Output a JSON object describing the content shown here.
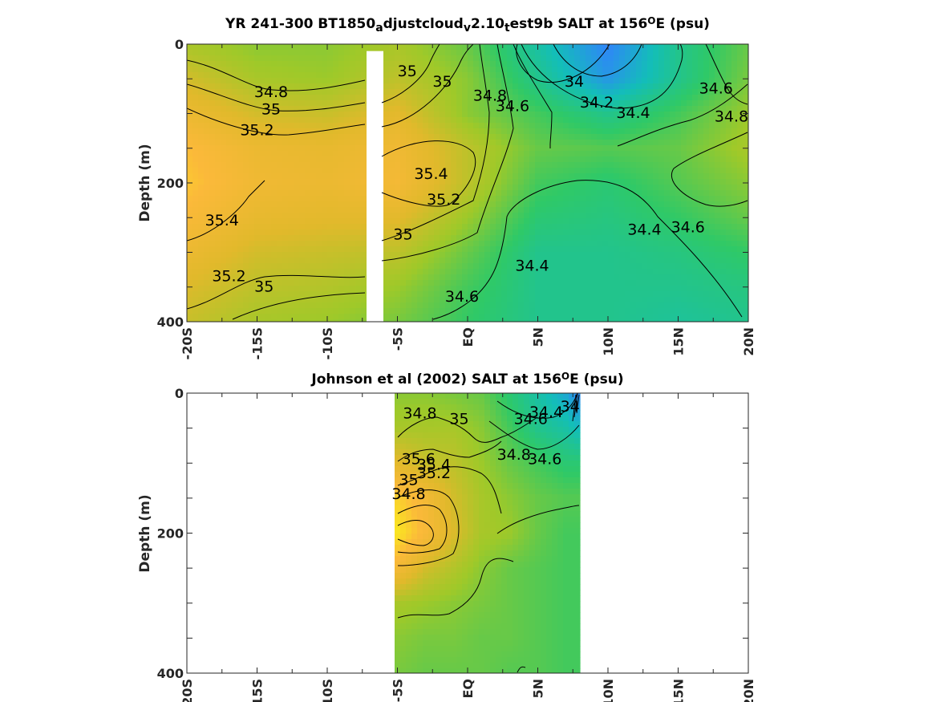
{
  "chart_data": [
    {
      "type": "heatmap",
      "title_parts": [
        "YR 241-300 BT1850",
        "a",
        "djustcloud",
        "v",
        "2.10",
        "t",
        "est9b SALT at 156",
        "O",
        "E (psu)"
      ],
      "ylabel": "Depth (m)",
      "xlim": [
        -20,
        20
      ],
      "ylim": [
        0,
        400
      ],
      "y_reversed": true,
      "x_tick_labels": [
        "-20S",
        "-15S",
        "-10S",
        "-5S",
        "EQ",
        "5N",
        "10N",
        "15N",
        "20N"
      ],
      "y_tick_labels": [
        "0",
        "200",
        "400"
      ],
      "x_tick_values": [
        -20,
        -15,
        -10,
        -5,
        0,
        5,
        10,
        15,
        20
      ],
      "y_tick_values": [
        0,
        200,
        400
      ],
      "missing_band": {
        "x": [
          -7.2,
          -6.0
        ],
        "depth": [
          10,
          400
        ]
      },
      "colormap": [
        "#3e26a8",
        "#2e87f7",
        "#13beb8",
        "#2fc967",
        "#9fc929",
        "#e1b92b",
        "#fbb93a",
        "#f9fb15"
      ],
      "color_range": [
        33.6,
        35.8
      ],
      "field_sample": {
        "lat": [
          -20,
          -15,
          -10,
          -5,
          0,
          5,
          10,
          15,
          20
        ],
        "depth": [
          0,
          50,
          100,
          150,
          200,
          250,
          300,
          350,
          400
        ],
        "salinity": [
          [
            34.9,
            34.8,
            34.8,
            34.9,
            34.7,
            34.3,
            33.9,
            34.4,
            34.7
          ],
          [
            35.1,
            34.9,
            34.85,
            35.0,
            34.8,
            34.4,
            34.0,
            34.4,
            34.75
          ],
          [
            35.3,
            35.1,
            35.05,
            35.2,
            34.8,
            34.6,
            34.4,
            34.6,
            34.85
          ],
          [
            35.5,
            35.3,
            35.25,
            35.35,
            35.0,
            34.7,
            34.65,
            34.7,
            34.9
          ],
          [
            35.55,
            35.35,
            35.3,
            35.4,
            35.0,
            34.6,
            34.5,
            34.65,
            34.8
          ],
          [
            35.45,
            35.25,
            35.2,
            35.2,
            34.85,
            34.5,
            34.45,
            34.55,
            34.7
          ],
          [
            35.3,
            35.1,
            35.05,
            35.0,
            34.7,
            34.4,
            34.4,
            34.45,
            34.55
          ],
          [
            35.15,
            35.0,
            34.95,
            34.85,
            34.6,
            34.4,
            34.4,
            34.4,
            34.45
          ],
          [
            35.05,
            34.9,
            34.85,
            34.75,
            34.55,
            34.4,
            34.4,
            34.35,
            34.4
          ]
        ]
      },
      "contour_labels": [
        {
          "text": "34.8",
          "lat": -14,
          "depth": 70
        },
        {
          "text": "35",
          "lat": -14,
          "depth": 95
        },
        {
          "text": "35.2",
          "lat": -15,
          "depth": 125
        },
        {
          "text": "35.4",
          "lat": -17.5,
          "depth": 255
        },
        {
          "text": "35.2",
          "lat": -17,
          "depth": 335
        },
        {
          "text": "35",
          "lat": -14.5,
          "depth": 350
        },
        {
          "text": "35",
          "lat": -4.3,
          "depth": 40
        },
        {
          "text": "35",
          "lat": -1.8,
          "depth": 55
        },
        {
          "text": "34.8",
          "lat": 1.6,
          "depth": 75
        },
        {
          "text": "34.6",
          "lat": 3.2,
          "depth": 90
        },
        {
          "text": "35.4",
          "lat": -2.6,
          "depth": 188
        },
        {
          "text": "35.2",
          "lat": -1.7,
          "depth": 225
        },
        {
          "text": "35",
          "lat": -4.6,
          "depth": 275
        },
        {
          "text": "34.6",
          "lat": -0.4,
          "depth": 365
        },
        {
          "text": "34.4",
          "lat": 4.6,
          "depth": 320
        },
        {
          "text": "34",
          "lat": 7.6,
          "depth": 55
        },
        {
          "text": "34.2",
          "lat": 9.2,
          "depth": 85
        },
        {
          "text": "34.4",
          "lat": 11.8,
          "depth": 100
        },
        {
          "text": "34.6",
          "lat": 17.7,
          "depth": 65
        },
        {
          "text": "34.8",
          "lat": 18.8,
          "depth": 105
        },
        {
          "text": "34.4",
          "lat": 12.6,
          "depth": 268
        },
        {
          "text": "34.6",
          "lat": 15.7,
          "depth": 265
        }
      ]
    },
    {
      "type": "heatmap",
      "title_parts": [
        "Johnson et al (2002) SALT at 156",
        "O",
        "E (psu)"
      ],
      "ylabel": "Depth (m)",
      "xlim": [
        -20,
        20
      ],
      "ylim": [
        0,
        400
      ],
      "y_reversed": true,
      "x_tick_labels": [
        "-20S",
        "-15S",
        "-10S",
        "-5S",
        "EQ",
        "5N",
        "10N",
        "15N",
        "20N"
      ],
      "y_tick_labels": [
        "0",
        "200",
        "400"
      ],
      "x_tick_values": [
        -20,
        -15,
        -10,
        -5,
        0,
        5,
        10,
        15,
        20
      ],
      "y_tick_values": [
        0,
        200,
        400
      ],
      "data_extent": {
        "lat": [
          -5,
          8
        ]
      },
      "colormap": [
        "#3e26a8",
        "#2e87f7",
        "#13beb8",
        "#2fc967",
        "#9fc929",
        "#e1b92b",
        "#fbb93a",
        "#f9fb15"
      ],
      "color_range": [
        33.6,
        35.8
      ],
      "field_sample": {
        "lat": [
          -5,
          -3,
          -1,
          1,
          3,
          5,
          7,
          8
        ],
        "depth": [
          0,
          50,
          100,
          150,
          200,
          250,
          300,
          350,
          400
        ],
        "salinity": [
          [
            34.8,
            34.8,
            34.75,
            34.7,
            34.5,
            34.3,
            34.1,
            33.9
          ],
          [
            34.9,
            34.9,
            34.9,
            34.8,
            34.6,
            34.4,
            34.3,
            34.2
          ],
          [
            35.2,
            35.05,
            35.0,
            34.85,
            34.7,
            34.6,
            34.5,
            34.5
          ],
          [
            35.6,
            35.4,
            35.1,
            34.9,
            34.8,
            34.7,
            34.65,
            34.65
          ],
          [
            35.7,
            35.45,
            35.15,
            34.9,
            34.85,
            34.7,
            34.6,
            34.6
          ],
          [
            35.4,
            35.1,
            34.95,
            34.8,
            34.7,
            34.65,
            34.6,
            34.6
          ],
          [
            34.9,
            34.85,
            34.8,
            34.75,
            34.7,
            34.65,
            34.6,
            34.6
          ],
          [
            34.8,
            34.75,
            34.75,
            34.7,
            34.7,
            34.65,
            34.6,
            34.6
          ],
          [
            34.75,
            34.7,
            34.7,
            34.7,
            34.65,
            34.65,
            34.6,
            34.6
          ]
        ]
      },
      "contour_labels": [
        {
          "text": "34.8",
          "lat": -3.4,
          "depth": 30
        },
        {
          "text": "35",
          "lat": -0.6,
          "depth": 38
        },
        {
          "text": "34.4",
          "lat": 5.6,
          "depth": 28
        },
        {
          "text": "34.6",
          "lat": 4.5,
          "depth": 38
        },
        {
          "text": "34",
          "lat": 7.3,
          "depth": 20
        },
        {
          "text": "35.6",
          "lat": -3.5,
          "depth": 95
        },
        {
          "text": "35.4",
          "lat": -2.4,
          "depth": 103
        },
        {
          "text": "35.2",
          "lat": -2.4,
          "depth": 115
        },
        {
          "text": "35",
          "lat": -4.2,
          "depth": 125
        },
        {
          "text": "34.8",
          "lat": 3.3,
          "depth": 89
        },
        {
          "text": "34.6",
          "lat": 5.5,
          "depth": 95
        },
        {
          "text": "34.8",
          "lat": -4.2,
          "depth": 145
        }
      ]
    }
  ]
}
